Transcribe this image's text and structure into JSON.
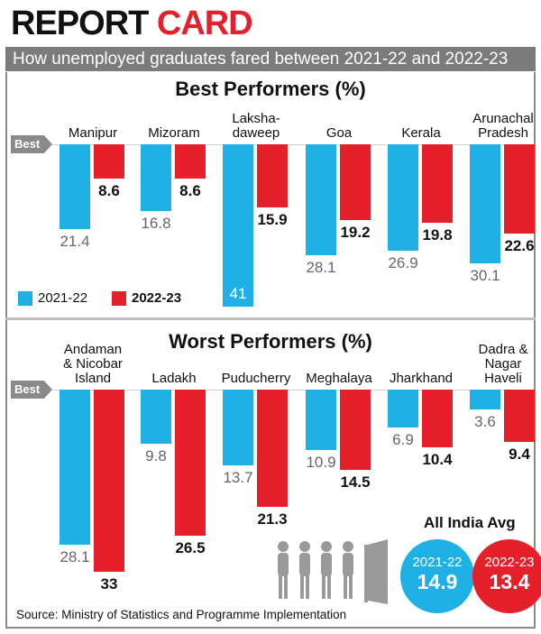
{
  "header": {
    "title": [
      "REPORT",
      "CARD"
    ],
    "subtitle": "How unemployed graduates fared between 2021-22 and 2022-23"
  },
  "chart_data": [
    {
      "type": "bar",
      "title": "Best Performers (%)",
      "baseline_label": "Best",
      "categories": [
        "Manipur",
        "Mizoram",
        "Laksha-\ndaweep",
        "Goa",
        "Kerala",
        "Arunachal\nPradesh"
      ],
      "series": [
        {
          "name": "2021-22",
          "color": "#1fb0e6",
          "values": [
            21.4,
            16.8,
            41,
            28.1,
            26.9,
            30.1
          ]
        },
        {
          "name": "2022-23",
          "color": "#e6202b",
          "values": [
            8.6,
            8.6,
            15.9,
            19.2,
            19.8,
            22.6
          ]
        }
      ]
    },
    {
      "type": "bar",
      "title": "Worst Performers (%)",
      "baseline_label": "Best",
      "categories": [
        "Andaman\n& Nicobar\nIsland",
        "Ladakh",
        "Puducherry",
        "Meghalaya",
        "Jharkhand",
        "Dadra &\nNagar\nHaveli"
      ],
      "series": [
        {
          "color": "#1fb0e6",
          "values": [
            28.1,
            9.8,
            13.7,
            10.9,
            6.9,
            3.6
          ]
        },
        {
          "color": "#e6202b",
          "values": [
            33,
            26.5,
            21.3,
            14.5,
            10.4,
            9.4
          ]
        }
      ]
    }
  ],
  "all_india_avg": {
    "title": "All India Avg",
    "items": [
      {
        "label": "2021-22",
        "value": 14.9,
        "color": "#1fb0e6"
      },
      {
        "label": "2022-23",
        "value": 13.4,
        "color": "#e6202b"
      }
    ]
  },
  "source": "Source: Ministry of Statistics and Programme Implementation"
}
